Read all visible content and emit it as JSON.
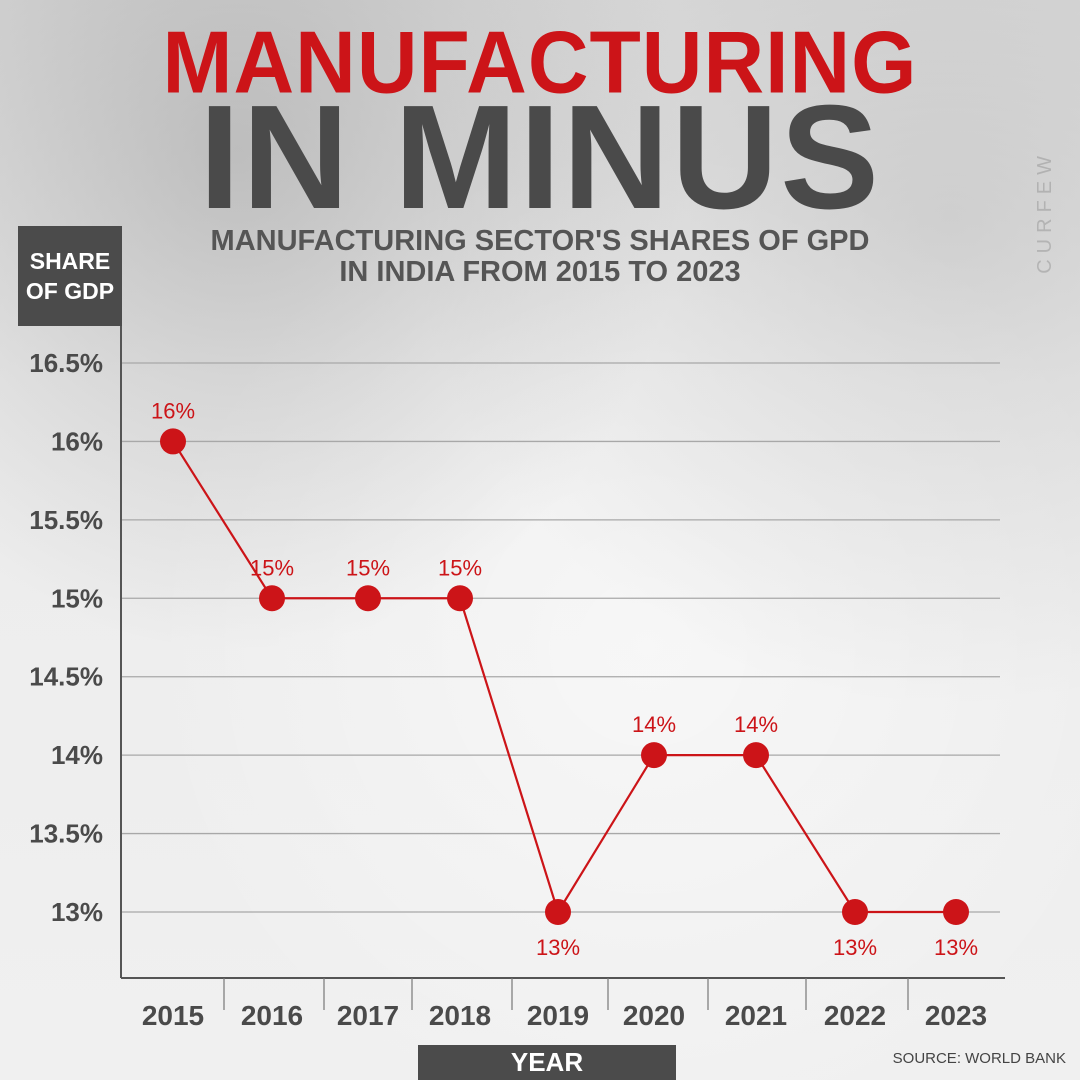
{
  "header": {
    "title_line1": "MANUFACTURING",
    "title_line2": "IN MINUS",
    "subtitle_line1": "MANUFACTURING SECTOR'S SHARES OF GPD",
    "subtitle_line2": "IN INDIA FROM 2015 TO 2023"
  },
  "background_text": "CURFEW",
  "footer": {
    "source": "SOURCE: WORLD BANK"
  },
  "colors": {
    "accent": "#cc1418",
    "dark": "#4b4b4b",
    "text": "#4a4a4a"
  },
  "chart_data": {
    "type": "line",
    "title": "MANUFACTURING IN MINUS",
    "subtitle": "MANUFACTURING SECTOR'S SHARES OF GPD IN INDIA FROM 2015 TO 2023",
    "ylabel_line1": "SHARE",
    "ylabel_line2": "OF GDP",
    "xlabel": "YEAR",
    "categories": [
      "2015",
      "2016",
      "2017",
      "2018",
      "2019",
      "2020",
      "2021",
      "2022",
      "2023"
    ],
    "values": [
      16,
      15,
      15,
      15,
      13,
      14,
      14,
      13,
      13
    ],
    "data_labels": [
      "16%",
      "15%",
      "15%",
      "15%",
      "13%",
      "14%",
      "14%",
      "13%",
      "13%"
    ],
    "data_label_position": [
      "above",
      "above",
      "above",
      "above",
      "below",
      "above",
      "above",
      "below",
      "below"
    ],
    "yticks": [
      16.5,
      16,
      15.5,
      15,
      14.5,
      14,
      13.5,
      13
    ],
    "ytick_labels": [
      "16.5%",
      "16%",
      "15.5%",
      "15%",
      "14.5%",
      "14%",
      "13.5%",
      "13%"
    ],
    "ylim": [
      12.6,
      16.5
    ],
    "grid": true,
    "legend": "none"
  }
}
